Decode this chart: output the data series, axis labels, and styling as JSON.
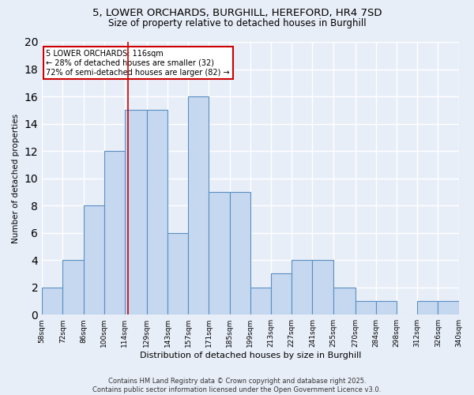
{
  "title_line1": "5, LOWER ORCHARDS, BURGHILL, HEREFORD, HR4 7SD",
  "title_line2": "Size of property relative to detached houses in Burghill",
  "xlabel": "Distribution of detached houses by size in Burghill",
  "ylabel": "Number of detached properties",
  "bin_edges": [
    58,
    72,
    86,
    100,
    114,
    129,
    143,
    157,
    171,
    185,
    199,
    213,
    227,
    241,
    255,
    270,
    284,
    298,
    312,
    326,
    340
  ],
  "counts": [
    2,
    4,
    8,
    12,
    15,
    15,
    6,
    16,
    9,
    9,
    2,
    3,
    4,
    4,
    2,
    1,
    1,
    0,
    1,
    1
  ],
  "bar_color": "#c5d8f0",
  "bar_edge_color": "#5a8fc2",
  "property_size": 116,
  "red_line_color": "#cc0000",
  "annotation_text": "5 LOWER ORCHARDS: 116sqm\n← 28% of detached houses are smaller (32)\n72% of semi-detached houses are larger (82) →",
  "annotation_box_color": "#ffffff",
  "annotation_box_edge_color": "#cc0000",
  "footer_line1": "Contains HM Land Registry data © Crown copyright and database right 2025.",
  "footer_line2": "Contains public sector information licensed under the Open Government Licence v3.0.",
  "background_color": "#e8eef8",
  "grid_color": "#ffffff",
  "ylim": [
    0,
    20
  ],
  "yticks": [
    0,
    2,
    4,
    6,
    8,
    10,
    12,
    14,
    16,
    18,
    20
  ],
  "tick_labels": [
    "58sqm",
    "72sqm",
    "86sqm",
    "100sqm",
    "114sqm",
    "129sqm",
    "143sqm",
    "157sqm",
    "171sqm",
    "185sqm",
    "199sqm",
    "213sqm",
    "227sqm",
    "241sqm",
    "255sqm",
    "270sqm",
    "284sqm",
    "298sqm",
    "312sqm",
    "326sqm",
    "340sqm"
  ]
}
